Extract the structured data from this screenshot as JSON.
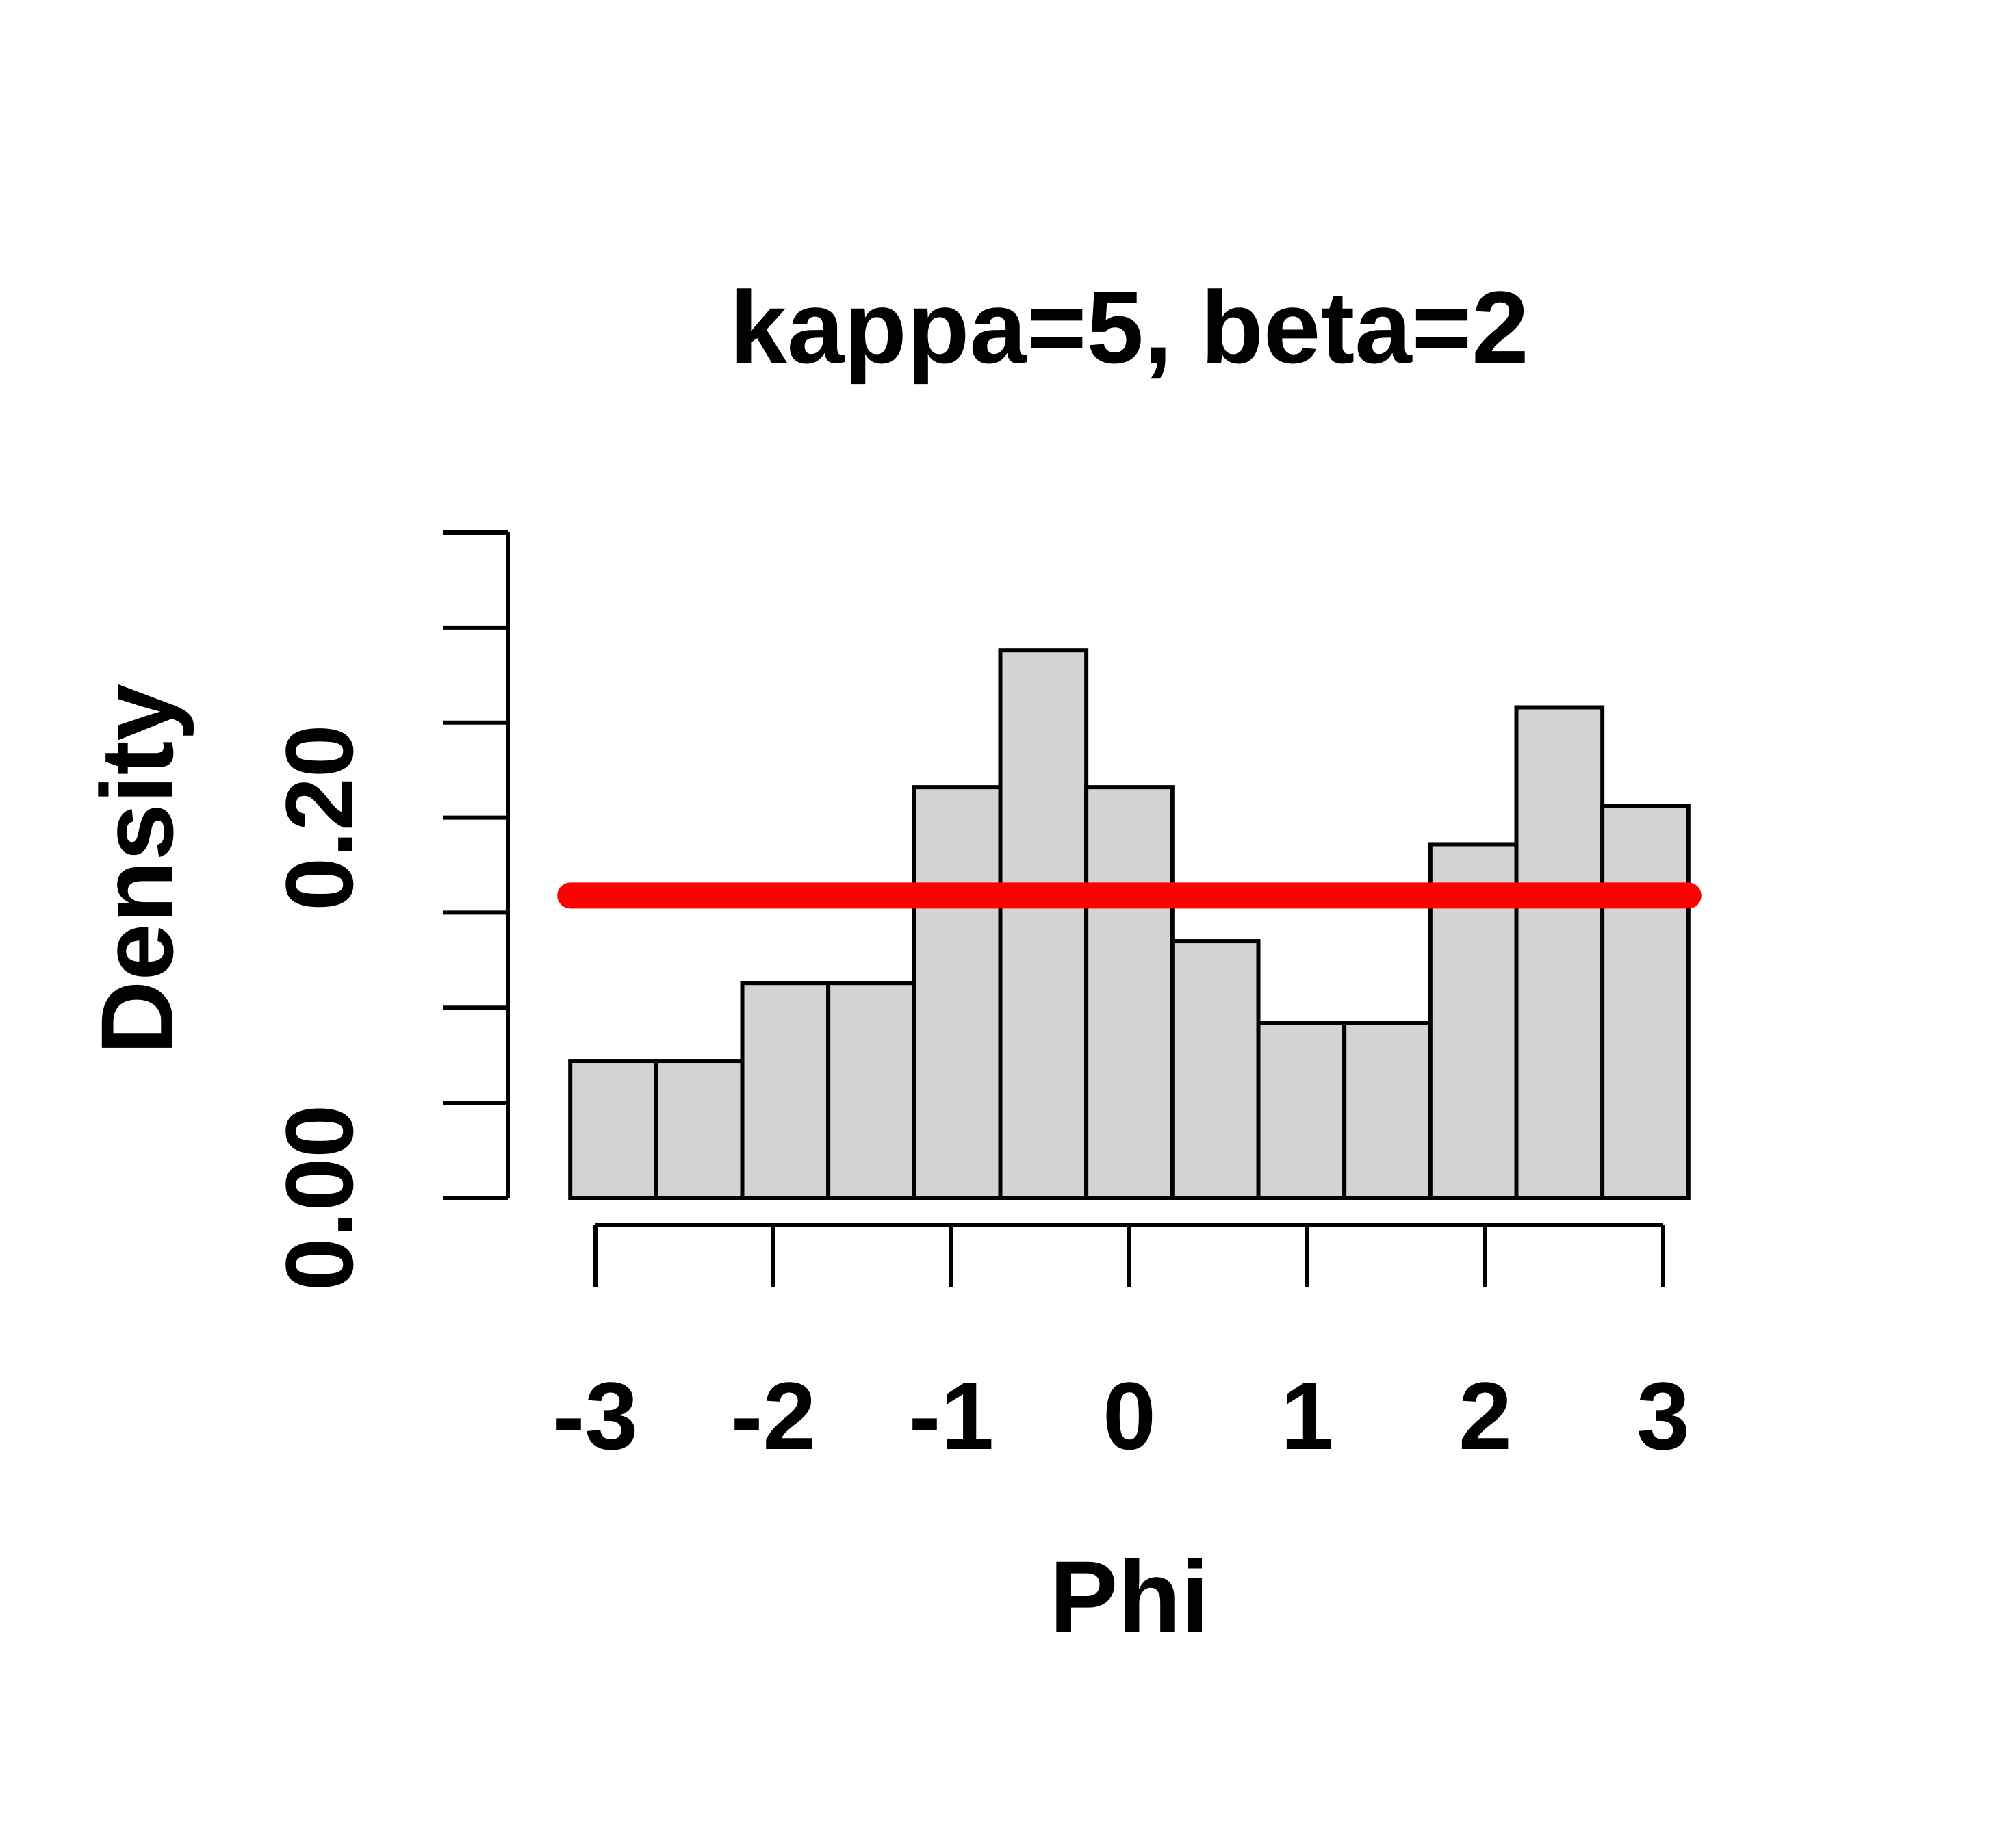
{
  "chart_data": {
    "type": "bar",
    "title": "kappa=5, beta=2",
    "xlabel": "Phi",
    "ylabel": "Density",
    "xlim": [
      -3.25,
      3.25
    ],
    "ylim": [
      0,
      0.35
    ],
    "x_ticks": [
      -3,
      -2,
      -1,
      0,
      1,
      2,
      3
    ],
    "x_tick_labels": [
      "-3",
      "-2",
      "-1",
      "0",
      "1",
      "2",
      "3"
    ],
    "y_ticks": [
      0,
      0.05,
      0.1,
      0.15,
      0.2,
      0.25,
      0.3,
      0.35
    ],
    "y_tick_labels": [
      {
        "value": 0,
        "label": "0.00"
      },
      {
        "value": 0.2,
        "label": "0.20"
      }
    ],
    "bin_edges": [
      -3.1416,
      -2.6583,
      -2.175,
      -1.6917,
      -1.2083,
      -0.725,
      -0.2417,
      0.2417,
      0.725,
      1.2083,
      1.6917,
      2.175,
      2.6583,
      3.1416
    ],
    "values": [
      0.072,
      0.072,
      0.113,
      0.113,
      0.216,
      0.288,
      0.216,
      0.135,
      0.092,
      0.092,
      0.186,
      0.258,
      0.206
    ],
    "bar_color": "#d3d3d3",
    "bar_edge_color": "#000000",
    "reference_line": {
      "y": 0.159,
      "x_range": [
        -3.1416,
        3.1416
      ],
      "color": "#ff0000"
    },
    "grid": false,
    "legend": "none"
  }
}
